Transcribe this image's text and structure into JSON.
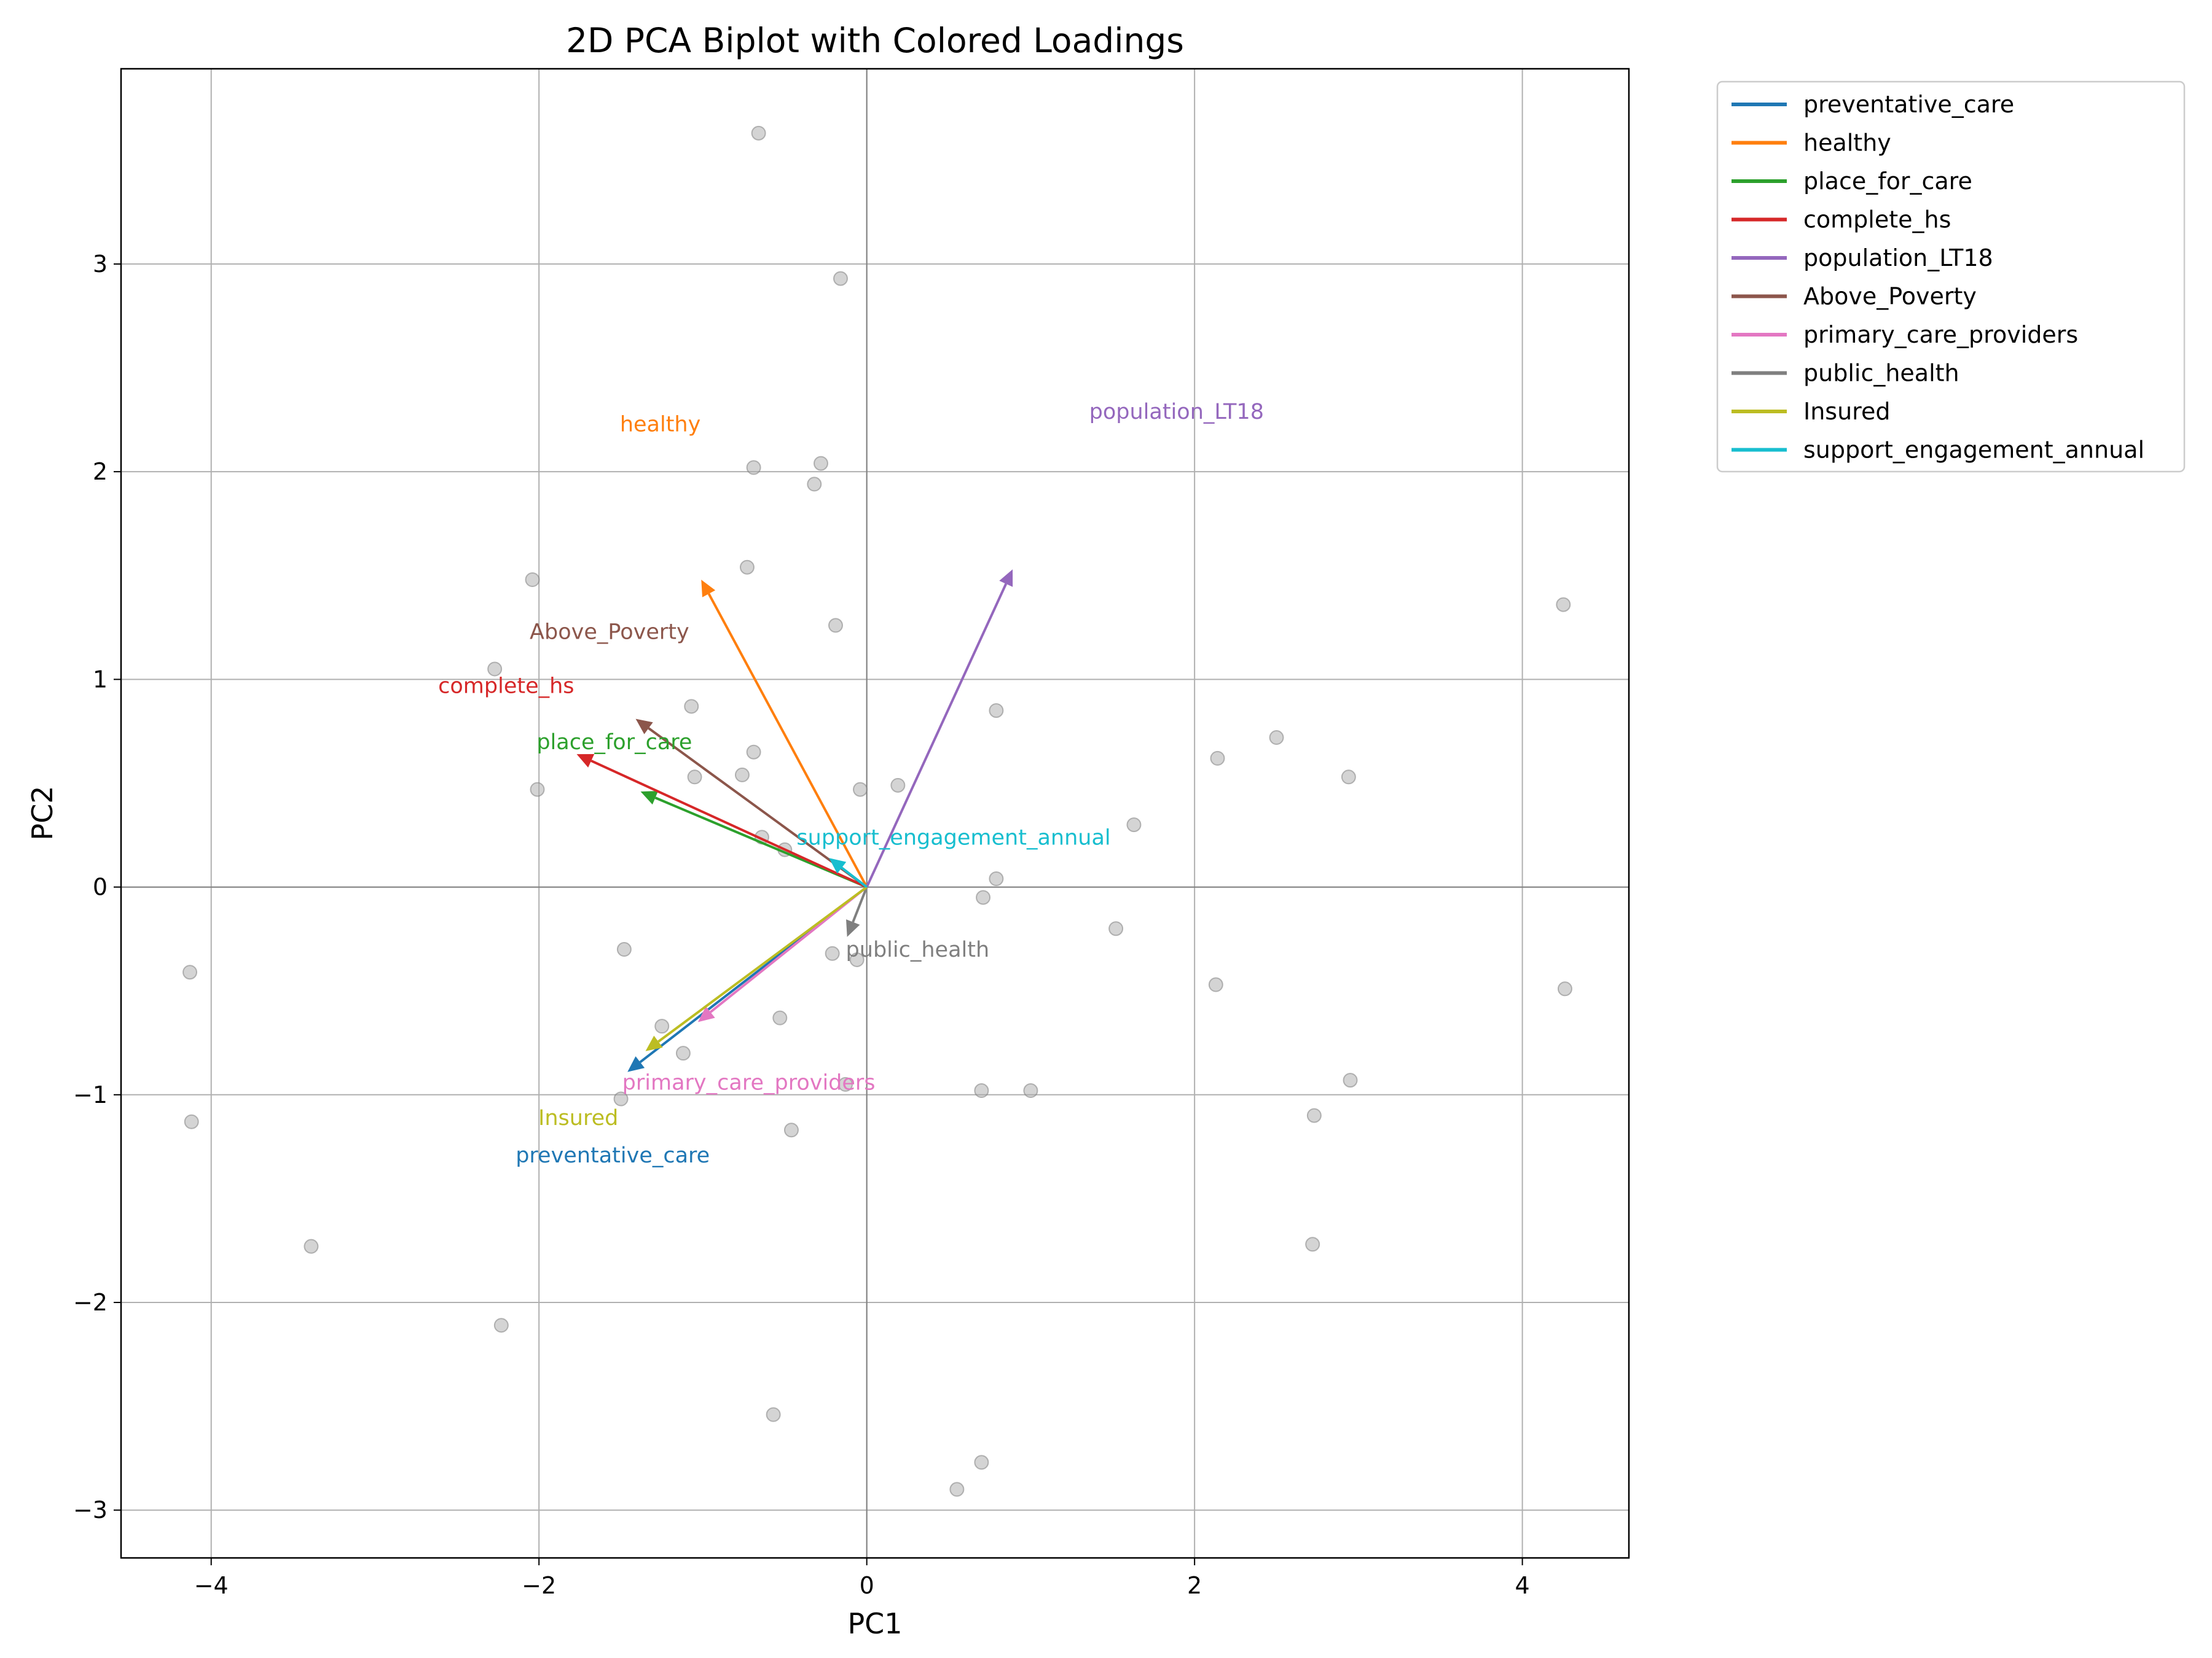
{
  "chart_data": {
    "type": "scatter",
    "title": "2D PCA Biplot with Colored Loadings",
    "xlabel": "PC1",
    "ylabel": "PC2",
    "xlim": [
      -4.55,
      4.65
    ],
    "ylim": [
      -3.23,
      3.94
    ],
    "xticks": [
      -4,
      -2,
      0,
      2,
      4
    ],
    "yticks": [
      -3,
      -2,
      -1,
      0,
      1,
      2,
      3
    ],
    "xtick_labels": [
      "−4",
      "−2",
      "0",
      "2",
      "4"
    ],
    "ytick_labels": [
      "−3",
      "−2",
      "−1",
      "0",
      "1",
      "2",
      "3"
    ],
    "grid": true,
    "legend_position": "outside-top-right",
    "point_color": "#a9a9a9",
    "points": [
      {
        "x": -0.66,
        "y": 3.63
      },
      {
        "x": -0.16,
        "y": 2.93
      },
      {
        "x": -0.69,
        "y": 2.02
      },
      {
        "x": -0.28,
        "y": 2.04
      },
      {
        "x": -0.32,
        "y": 1.94
      },
      {
        "x": -0.73,
        "y": 1.54
      },
      {
        "x": -2.04,
        "y": 1.48
      },
      {
        "x": -0.19,
        "y": 1.26
      },
      {
        "x": -2.27,
        "y": 1.05
      },
      {
        "x": -1.07,
        "y": 0.87
      },
      {
        "x": 0.79,
        "y": 0.85
      },
      {
        "x": -0.69,
        "y": 0.65
      },
      {
        "x": -1.05,
        "y": 0.53
      },
      {
        "x": -0.76,
        "y": 0.54
      },
      {
        "x": -2.01,
        "y": 0.47
      },
      {
        "x": -0.04,
        "y": 0.47
      },
      {
        "x": 0.19,
        "y": 0.49
      },
      {
        "x": 2.14,
        "y": 0.62
      },
      {
        "x": 2.5,
        "y": 0.72
      },
      {
        "x": 2.94,
        "y": 0.53
      },
      {
        "x": 4.25,
        "y": 1.36
      },
      {
        "x": 1.63,
        "y": 0.3
      },
      {
        "x": -0.64,
        "y": 0.24
      },
      {
        "x": -0.5,
        "y": 0.18
      },
      {
        "x": 0.79,
        "y": 0.04
      },
      {
        "x": 0.71,
        "y": -0.05
      },
      {
        "x": 1.52,
        "y": -0.2
      },
      {
        "x": -1.48,
        "y": -0.3
      },
      {
        "x": -0.21,
        "y": -0.32
      },
      {
        "x": -0.06,
        "y": -0.35
      },
      {
        "x": 2.13,
        "y": -0.47
      },
      {
        "x": 4.26,
        "y": -0.49
      },
      {
        "x": -4.13,
        "y": -0.41
      },
      {
        "x": -1.25,
        "y": -0.67
      },
      {
        "x": -0.53,
        "y": -0.63
      },
      {
        "x": -1.12,
        "y": -0.8
      },
      {
        "x": -1.5,
        "y": -1.02
      },
      {
        "x": -0.13,
        "y": -0.95
      },
      {
        "x": 0.7,
        "y": -0.98
      },
      {
        "x": 1.0,
        "y": -0.98
      },
      {
        "x": 2.95,
        "y": -0.93
      },
      {
        "x": 2.73,
        "y": -1.1
      },
      {
        "x": -4.12,
        "y": -1.13
      },
      {
        "x": -0.46,
        "y": -1.17
      },
      {
        "x": -3.39,
        "y": -1.73
      },
      {
        "x": 2.72,
        "y": -1.72
      },
      {
        "x": -2.23,
        "y": -2.11
      },
      {
        "x": -0.57,
        "y": -2.54
      },
      {
        "x": 0.7,
        "y": -2.77
      },
      {
        "x": 0.55,
        "y": -2.9
      }
    ],
    "loadings": [
      {
        "name": "preventative_care",
        "color": "#1f77b4",
        "x": -1.46,
        "y": -0.89,
        "label_x": -1.55,
        "label_y": -1.29
      },
      {
        "name": "healthy",
        "color": "#ff7f0e",
        "x": -1.01,
        "y": 1.48,
        "label_x": -1.26,
        "label_y": 2.23
      },
      {
        "name": "place_for_care",
        "color": "#2ca02c",
        "x": -1.38,
        "y": 0.46,
        "label_x": -1.54,
        "label_y": 0.7
      },
      {
        "name": "complete_hs",
        "color": "#d62728",
        "x": -1.77,
        "y": 0.64,
        "label_x": -2.2,
        "label_y": 0.97
      },
      {
        "name": "population_LT18",
        "color": "#9467bd",
        "x": 0.89,
        "y": 1.53,
        "label_x": 1.89,
        "label_y": 2.29
      },
      {
        "name": "Above_Poverty",
        "color": "#8c564b",
        "x": -1.41,
        "y": 0.81,
        "label_x": -1.57,
        "label_y": 1.23
      },
      {
        "name": "primary_care_providers",
        "color": "#e377c2",
        "x": -1.03,
        "y": -0.65,
        "label_x": -0.72,
        "label_y": -0.94
      },
      {
        "name": "public_health",
        "color": "#7f7f7f",
        "x": -0.12,
        "y": -0.24,
        "label_x": 0.31,
        "label_y": -0.3
      },
      {
        "name": "Insured",
        "color": "#bcbd22",
        "x": -1.35,
        "y": -0.79,
        "label_x": -1.76,
        "label_y": -1.11
      },
      {
        "name": "support_engagement_annual",
        "color": "#17becf",
        "x": -0.23,
        "y": 0.14,
        "label_x": 0.53,
        "label_y": 0.24
      }
    ]
  }
}
